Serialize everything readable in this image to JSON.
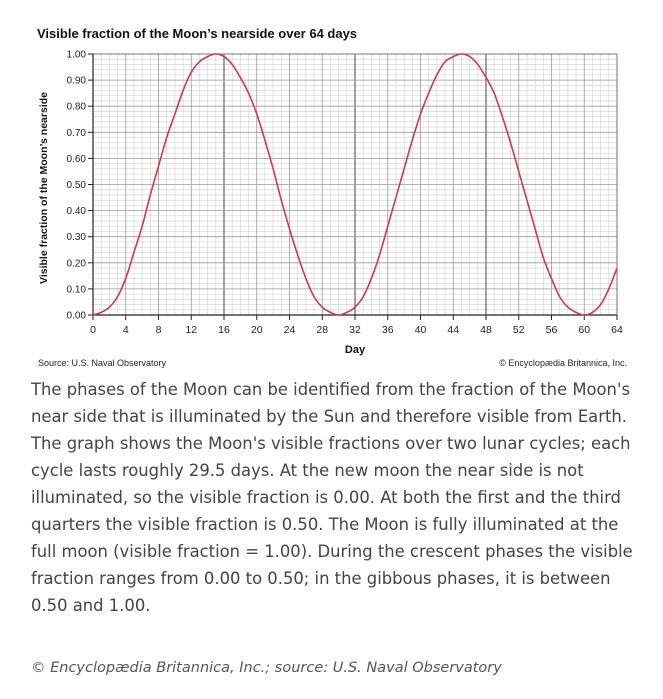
{
  "chart_data": {
    "type": "line",
    "title": "Visible fraction of the Moon’s nearside over 64 days",
    "xlabel": "Day",
    "ylabel": "Visible fraction of the Moon’s nearside",
    "xlim": [
      0,
      64
    ],
    "ylim": [
      0,
      1
    ],
    "x_ticks": [
      "0",
      "4",
      "8",
      "12",
      "16",
      "20",
      "24",
      "28",
      "32",
      "36",
      "40",
      "44",
      "48",
      "52",
      "56",
      "60",
      "64"
    ],
    "y_ticks": [
      "0.00",
      "0.10",
      "0.20",
      "0.30",
      "0.40",
      "0.50",
      "0.60",
      "0.70",
      "0.80",
      "0.90",
      "1.00"
    ],
    "grid": true,
    "minor_grid": true,
    "line_color": "#c8385a",
    "series": [
      {
        "x": [
          0,
          1,
          2,
          3,
          4,
          5,
          6,
          7,
          8,
          9,
          10,
          11,
          12,
          13,
          14,
          15,
          16,
          17,
          18,
          19,
          20,
          21,
          22,
          23,
          24,
          25,
          26,
          27,
          28,
          29,
          30,
          31,
          32,
          33,
          34,
          35,
          36,
          37,
          38,
          39,
          40,
          41,
          42,
          43,
          44,
          45,
          46,
          47,
          48,
          49,
          50,
          51,
          52,
          53,
          54,
          55,
          56,
          57,
          58,
          59,
          60,
          61,
          62,
          63,
          64
        ],
        "y": [
          0.0,
          0.01,
          0.03,
          0.07,
          0.14,
          0.24,
          0.34,
          0.46,
          0.57,
          0.68,
          0.77,
          0.86,
          0.93,
          0.97,
          0.99,
          1.0,
          0.99,
          0.96,
          0.91,
          0.85,
          0.77,
          0.67,
          0.56,
          0.44,
          0.33,
          0.23,
          0.14,
          0.07,
          0.03,
          0.01,
          0.0,
          0.01,
          0.03,
          0.07,
          0.14,
          0.23,
          0.34,
          0.45,
          0.56,
          0.67,
          0.77,
          0.85,
          0.92,
          0.97,
          0.99,
          1.0,
          0.99,
          0.96,
          0.91,
          0.85,
          0.76,
          0.66,
          0.55,
          0.44,
          0.33,
          0.22,
          0.14,
          0.07,
          0.03,
          0.01,
          0.0,
          0.01,
          0.04,
          0.1,
          0.18
        ]
      }
    ]
  },
  "source_note": "Source: U.S. Naval Observatory",
  "credit_note": "© Encyclopædia Britannica, Inc.",
  "caption": "The phases of the Moon can be identified from the fraction of the Moon's near side that is illuminated by the Sun and therefore visible from Earth. The graph shows the Moon's visible fractions over two lunar cycles; each cycle lasts roughly 29.5 days. At the new moon the near side is not illuminated, so the visible fraction is 0.00. At both the first and the third quarters the visible fraction is 0.50. The Moon is fully illuminated at the full moon (visible fraction = 1.00). During the crescent phases the visible fraction ranges from 0.00 to 0.50; in the gibbous phases, it is between 0.50 and 1.00.",
  "footer_credit": "© Encyclopædia Britannica, Inc.; source: U.S. Naval Observatory"
}
